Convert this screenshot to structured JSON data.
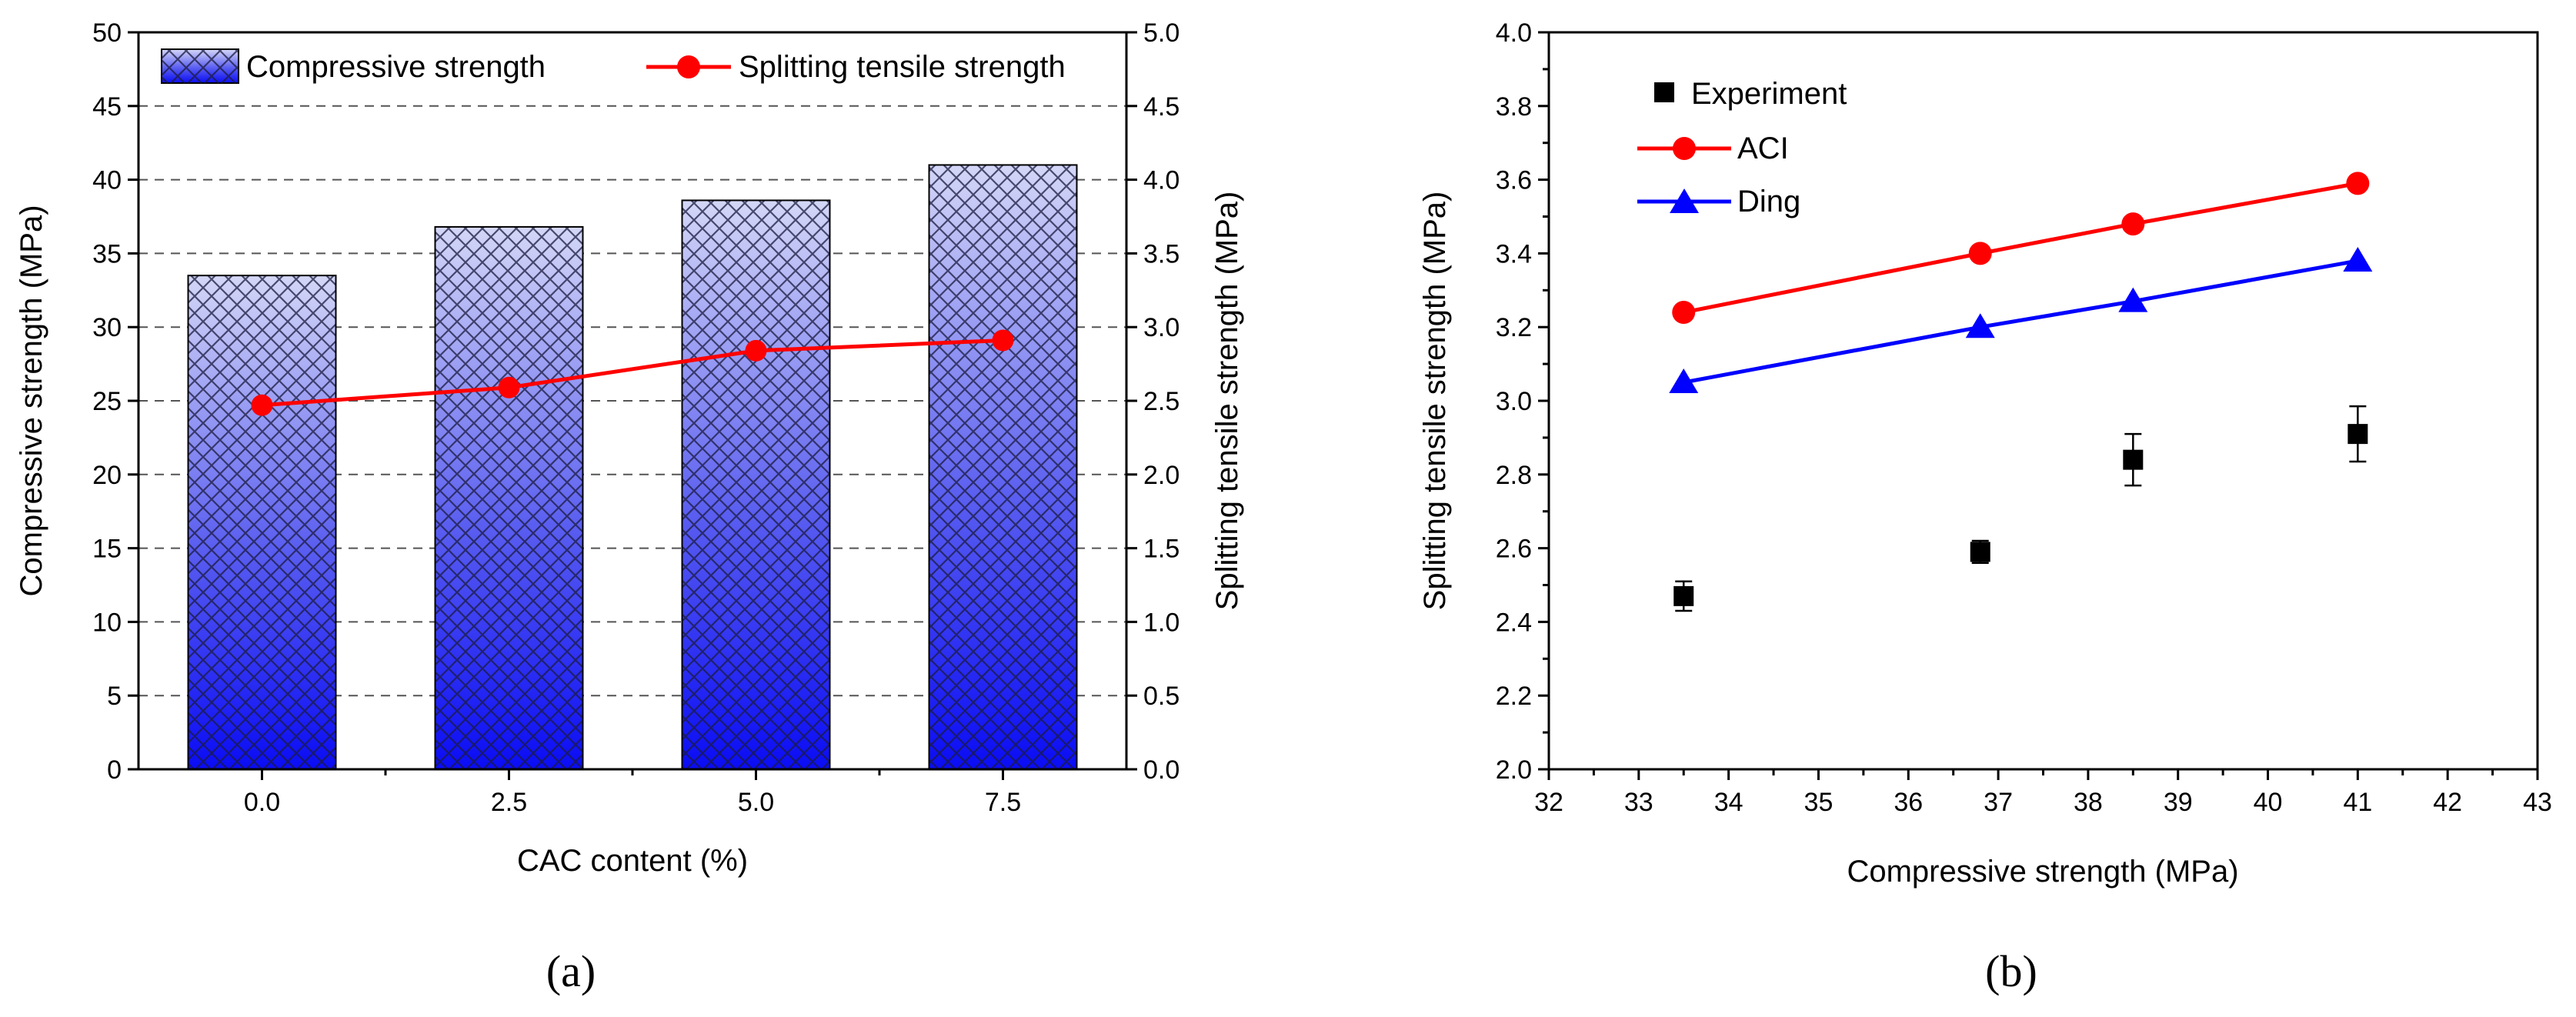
{
  "panels": {
    "a": "(a)",
    "b": "(b)"
  },
  "chart_data": [
    {
      "type": "bar",
      "panel": "(a)",
      "categories": [
        "0.0",
        "2.5",
        "5.0",
        "7.5"
      ],
      "series": [
        {
          "name": "Compressive strength",
          "axis": "left",
          "kind": "bar",
          "values": [
            33.5,
            36.8,
            38.6,
            41.0
          ]
        },
        {
          "name": "Splitting tensile strength",
          "axis": "right",
          "kind": "line",
          "color": "#ff0000",
          "values": [
            2.47,
            2.59,
            2.84,
            2.91
          ]
        }
      ],
      "xlabel": "CAC content (%)",
      "ylabel": "Compressive strength (MPa)",
      "ylabel_right": "Splitting tensile strength (MPa)",
      "ylim": [
        0,
        50
      ],
      "ylim_right": [
        0,
        5
      ],
      "yticks": [
        "0",
        "5",
        "10",
        "15",
        "20",
        "25",
        "30",
        "35",
        "40",
        "45",
        "50"
      ],
      "yticks_right": [
        "0.0",
        "0.5",
        "1.0",
        "1.5",
        "2.0",
        "2.5",
        "3.0",
        "3.5",
        "4.0",
        "4.5",
        "5.0"
      ],
      "grid": "horizontal dashed",
      "legend": [
        "Compressive strength",
        "Splitting tensile strength"
      ],
      "legend_position": "top"
    },
    {
      "type": "scatter",
      "panel": "(b)",
      "x": [
        33.5,
        36.8,
        38.5,
        41.0
      ],
      "series": [
        {
          "name": "Experiment",
          "marker": "square",
          "color": "#000000",
          "values": [
            2.47,
            2.59,
            2.84,
            2.91
          ],
          "errors": [
            0.04,
            0.03,
            0.07,
            0.075
          ]
        },
        {
          "name": "ACI",
          "marker": "circle",
          "color": "#ff0000",
          "values": [
            3.24,
            3.4,
            3.48,
            3.59
          ]
        },
        {
          "name": "Ding",
          "marker": "triangle",
          "color": "#0000ff",
          "values": [
            3.05,
            3.2,
            3.27,
            3.38
          ]
        }
      ],
      "xlabel": "Compressive strength (MPa)",
      "ylabel": "Splitting tensile strength (MPa)",
      "xlim": [
        32,
        43
      ],
      "ylim": [
        2.0,
        4.0
      ],
      "xticks": [
        "32",
        "33",
        "34",
        "35",
        "36",
        "37",
        "38",
        "39",
        "40",
        "41",
        "42",
        "43"
      ],
      "yticks": [
        "2.0",
        "2.2",
        "2.4",
        "2.6",
        "2.8",
        "3.0",
        "3.2",
        "3.4",
        "3.6",
        "3.8",
        "4.0"
      ],
      "grid": "off",
      "legend": [
        "Experiment",
        "ACI",
        "Ding"
      ],
      "legend_position": "top-left"
    }
  ]
}
